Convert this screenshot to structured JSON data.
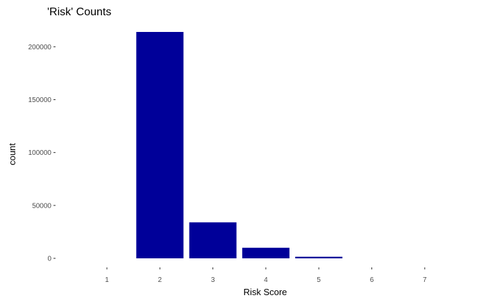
{
  "chart_data": {
    "type": "bar",
    "title": "'Risk' Counts",
    "xlabel": "Risk Score",
    "ylabel": "count",
    "categories": [
      "1",
      "2",
      "3",
      "4",
      "5",
      "6",
      "7"
    ],
    "values": [
      0,
      214000,
      34000,
      10000,
      1500,
      0,
      0
    ],
    "ylim": [
      0,
      214000
    ],
    "yticks": [
      0,
      50000,
      100000,
      150000,
      200000
    ],
    "ytick_labels": [
      "0",
      "50000",
      "100000",
      "150000",
      "200000"
    ],
    "grid": false,
    "legend": "none",
    "bar_color": "#000099"
  }
}
